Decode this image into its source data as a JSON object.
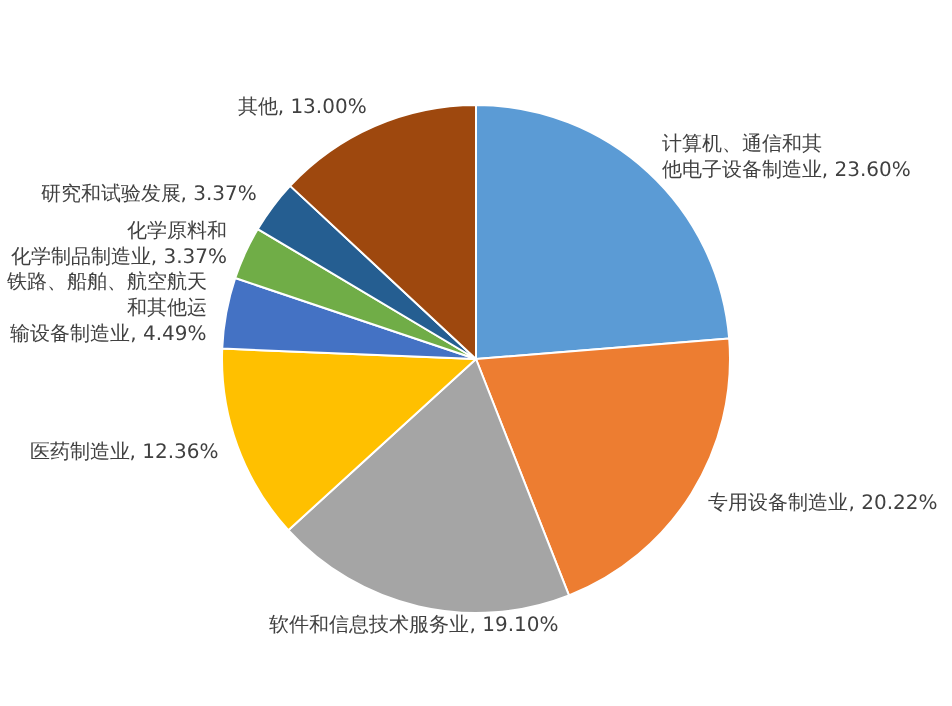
{
  "chart_data": {
    "type": "pie",
    "categories": [
      "计算机、通信和其他电子设备制造业",
      "专用设备制造业",
      "软件和信息技术服务业",
      "医药制造业",
      "铁路、船舶、航空航天和其他运输设备制造业",
      "化学原料和化学制品制造业",
      "研究和试验发展",
      "其他"
    ],
    "values": [
      23.6,
      20.22,
      19.1,
      12.36,
      4.49,
      3.37,
      3.37,
      13.0
    ],
    "value_labels": [
      "23.60%",
      "20.22%",
      "19.10%",
      "12.36%",
      "4.49%",
      "3.37%",
      "3.37%",
      "13.00%"
    ],
    "colors": [
      "#5b9bd5",
      "#ed7d31",
      "#a5a5a5",
      "#ffc000",
      "#4472c4",
      "#70ad47",
      "#255e91",
      "#9e480e"
    ],
    "legend": false
  }
}
